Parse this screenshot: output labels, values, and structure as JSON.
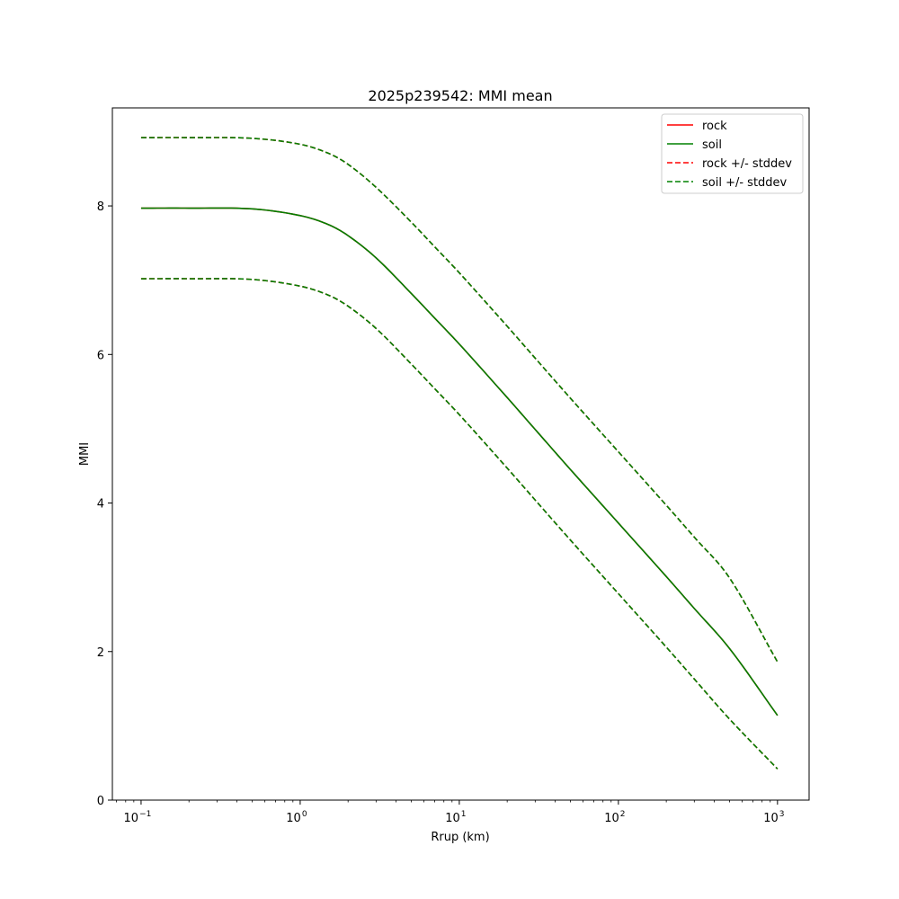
{
  "chart_data": {
    "type": "line",
    "title": "2025p239542: MMI mean",
    "xlabel": "Rrup (km)",
    "ylabel": "MMI",
    "xscale": "log",
    "xlim": [
      0.066,
      1580
    ],
    "ylim": [
      0,
      9.32
    ],
    "xticks": [
      {
        "value": 0.1,
        "base": "10",
        "exp": "−1"
      },
      {
        "value": 1,
        "base": "10",
        "exp": "0"
      },
      {
        "value": 10,
        "base": "10",
        "exp": "1"
      },
      {
        "value": 100,
        "base": "10",
        "exp": "2"
      },
      {
        "value": 1000,
        "base": "10",
        "exp": "3"
      }
    ],
    "yticks": [
      {
        "value": 0,
        "label": "0"
      },
      {
        "value": 2,
        "label": "2"
      },
      {
        "value": 4,
        "label": "4"
      },
      {
        "value": 6,
        "label": "6"
      },
      {
        "value": 8,
        "label": "8"
      }
    ],
    "grid": false,
    "legend_position": "top-right",
    "x": [
      0.1,
      0.2,
      0.5,
      1,
      1.5,
      2,
      3,
      5,
      7,
      10,
      20,
      30,
      50,
      100,
      200,
      300,
      500,
      1000
    ],
    "series": [
      {
        "name": "rock",
        "style": "solid",
        "color": "#ff0000",
        "values": [
          7.97,
          7.97,
          7.96,
          7.87,
          7.75,
          7.6,
          7.3,
          6.82,
          6.49,
          6.14,
          5.42,
          4.99,
          4.45,
          3.73,
          3.01,
          2.58,
          2.04,
          1.14
        ]
      },
      {
        "name": "soil",
        "style": "solid",
        "color": "#008000",
        "values": [
          7.97,
          7.97,
          7.96,
          7.87,
          7.75,
          7.6,
          7.3,
          6.82,
          6.49,
          6.14,
          5.42,
          4.99,
          4.45,
          3.73,
          3.01,
          2.58,
          2.04,
          1.14
        ]
      },
      {
        "name": "rock +/- stddev",
        "style": "dashed",
        "color": "#ff0000",
        "values_upper": [
          8.92,
          8.92,
          8.91,
          8.83,
          8.71,
          8.56,
          8.25,
          7.78,
          7.45,
          7.1,
          6.38,
          5.95,
          5.41,
          4.69,
          3.97,
          3.54,
          2.99,
          1.86
        ],
        "values_lower": [
          7.02,
          7.02,
          7.01,
          6.92,
          6.8,
          6.65,
          6.35,
          5.87,
          5.54,
          5.19,
          4.47,
          4.04,
          3.5,
          2.78,
          2.06,
          1.63,
          1.09,
          0.42
        ]
      },
      {
        "name": "soil +/- stddev",
        "style": "dashed",
        "color": "#008000",
        "values_upper": [
          8.92,
          8.92,
          8.91,
          8.83,
          8.71,
          8.56,
          8.25,
          7.78,
          7.45,
          7.1,
          6.38,
          5.95,
          5.41,
          4.69,
          3.97,
          3.54,
          2.99,
          1.86
        ],
        "values_lower": [
          7.02,
          7.02,
          7.01,
          6.92,
          6.8,
          6.65,
          6.35,
          5.87,
          5.54,
          5.19,
          4.47,
          4.04,
          3.5,
          2.78,
          2.06,
          1.63,
          1.09,
          0.42
        ]
      }
    ]
  }
}
